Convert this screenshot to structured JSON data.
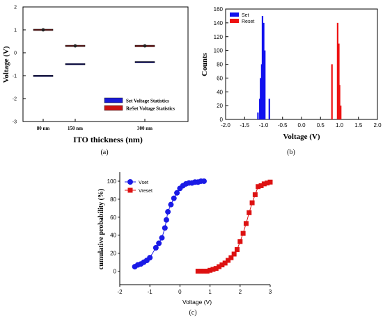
{
  "chart_data": [
    {
      "panel": "(a)",
      "type": "box",
      "xlabel": "ITO thickness (nm)",
      "ylabel": "Voltage (V)",
      "ylim": [
        -3,
        2
      ],
      "yticks": [
        "2",
        "1",
        "0",
        "-1",
        "-2",
        "-3"
      ],
      "categories": [
        "80 nm",
        "150 nm",
        "300 nm"
      ],
      "category_positions": [
        80,
        150,
        300
      ],
      "legend_position": "bottom-right",
      "series": [
        {
          "name": "Set Voltage Statistics",
          "color": "#1a1ad6",
          "values": [
            -1.0,
            -0.5,
            -0.4
          ],
          "q1": [
            -1.03,
            -0.52,
            -0.41
          ],
          "q3": [
            -0.98,
            -0.47,
            -0.38
          ]
        },
        {
          "name": "ReSet Voltage Statistics",
          "color": "#cc1111",
          "values": [
            1.0,
            0.3,
            0.3
          ],
          "q1": [
            0.97,
            0.27,
            0.26
          ],
          "q3": [
            1.03,
            0.33,
            0.33
          ],
          "mean": [
            1.0,
            0.3,
            0.3
          ]
        }
      ]
    },
    {
      "panel": "(b)",
      "type": "bar",
      "xlabel": "Voltage (V)",
      "ylabel": "Counts",
      "xlim": [
        -2.0,
        2.0
      ],
      "ylim": [
        0,
        160
      ],
      "xticks": [
        "-2.0",
        "-1.5",
        "-1.0",
        "-0.5",
        "0.0",
        "0.5",
        "1.0",
        "1.5",
        "2.0"
      ],
      "yticks": [
        "0",
        "20",
        "40",
        "60",
        "80",
        "100",
        "120",
        "140",
        "160"
      ],
      "legend_position": "top-left",
      "series": [
        {
          "name": "Set",
          "color": "#1111ee",
          "x": [
            -1.15,
            -1.1,
            -1.08,
            -1.05,
            -1.03,
            -1.0,
            -0.97,
            -0.85
          ],
          "values": [
            10,
            30,
            60,
            80,
            150,
            140,
            100,
            30
          ]
        },
        {
          "name": "Reset",
          "color": "#ee1111",
          "x": [
            0.8,
            0.95,
            0.98,
            1.0,
            1.03
          ],
          "values": [
            80,
            140,
            110,
            50,
            20
          ]
        }
      ]
    },
    {
      "panel": "(c)",
      "type": "line",
      "xlabel": "Voltage (V)",
      "ylabel": "cumulative probability (%)",
      "xlim": [
        -2,
        3
      ],
      "ylim": [
        -15,
        110
      ],
      "xticks": [
        "-2",
        "-1",
        "0",
        "1",
        "2",
        "3"
      ],
      "yticks": [
        "0",
        "20",
        "40",
        "60",
        "80",
        "100"
      ],
      "legend_position": "top-left",
      "series": [
        {
          "name": "Vset",
          "color": "#1a1ae6",
          "marker": "circle",
          "x": [
            -1.5,
            -1.4,
            -1.3,
            -1.2,
            -1.1,
            -1.0,
            -0.8,
            -0.7,
            -0.6,
            -0.5,
            -0.45,
            -0.4,
            -0.3,
            -0.2,
            -0.1,
            0.0,
            0.1,
            0.2,
            0.3,
            0.4,
            0.5,
            0.6,
            0.7,
            0.8
          ],
          "values": [
            5,
            7,
            8,
            10,
            12,
            15,
            26,
            31,
            37,
            48,
            57,
            66,
            74,
            81,
            87,
            92,
            95,
            97,
            98,
            98,
            99,
            99,
            100,
            100
          ]
        },
        {
          "name": "Vreset",
          "color": "#dd1111",
          "marker": "square",
          "x": [
            0.6,
            0.7,
            0.8,
            0.9,
            1.0,
            1.1,
            1.2,
            1.3,
            1.4,
            1.5,
            1.6,
            1.7,
            1.8,
            1.9,
            2.0,
            2.1,
            2.2,
            2.3,
            2.4,
            2.5,
            2.6,
            2.7,
            2.8,
            2.9,
            3.0
          ],
          "values": [
            0,
            0,
            0,
            0,
            1,
            2,
            3,
            5,
            7,
            9,
            12,
            15,
            19,
            24,
            33,
            42,
            53,
            65,
            76,
            85,
            94,
            95,
            97,
            98,
            99
          ]
        }
      ]
    }
  ]
}
